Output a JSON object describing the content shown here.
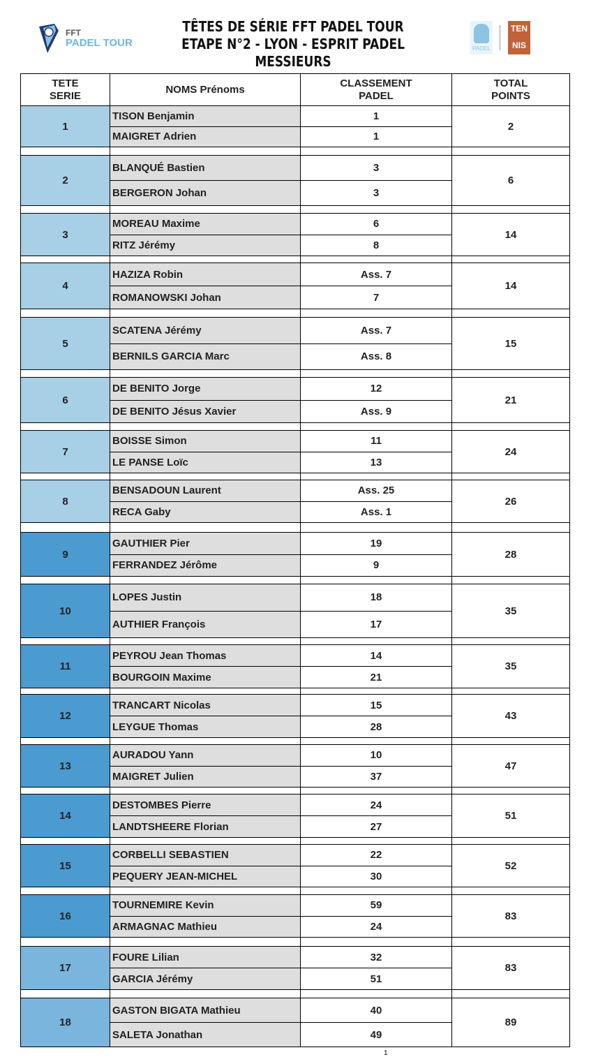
{
  "header": {
    "title_lines": [
      "TÊTES DE SÉRIE FFT  PADEL TOUR",
      "ETAPE N°2 -  LYON - ESPRIT PADEL",
      "MESSIEURS"
    ],
    "logo_left": {
      "line1": "FFT",
      "line2": "PADEL TOUR"
    },
    "logo_right": {
      "padel": "PADEL",
      "tennis_top": "TEN",
      "tennis_bottom": "NIS"
    }
  },
  "colors": {
    "seed_light": "#a7cfe5",
    "seed_dark": "#4b9bd1",
    "seed_mid": "#79b5dc",
    "name_bg": "#dedede",
    "tennis_brand": "#c0633a",
    "padel_brand": "#8cc4e2"
  },
  "columns": [
    "TETE SERIE",
    "NOMS Prénoms",
    "CLASSEMENT PADEL",
    "TOTAL POINTS"
  ],
  "seeds": [
    {
      "seed": "1",
      "players": [
        {
          "name": "TISON Benjamin",
          "rank": "1"
        },
        {
          "name": "MAIGRET Adrien",
          "rank": "1"
        }
      ],
      "total": "2"
    },
    {
      "seed": "2",
      "players": [
        {
          "name": "BLANQUÉ Bastien",
          "rank": "3"
        },
        {
          "name": "BERGERON Johan",
          "rank": "3"
        }
      ],
      "total": "6"
    },
    {
      "seed": "3",
      "players": [
        {
          "name": "MOREAU Maxime",
          "rank": "6"
        },
        {
          "name": "RITZ Jérémy",
          "rank": "8"
        }
      ],
      "total": "14"
    },
    {
      "seed": "4",
      "players": [
        {
          "name": "HAZIZA Robin",
          "rank": "Ass. 7"
        },
        {
          "name": "ROMANOWSKI Johan",
          "rank": "7"
        }
      ],
      "total": "14"
    },
    {
      "seed": "5",
      "players": [
        {
          "name": "SCATENA Jérémy",
          "rank": "Ass. 7"
        },
        {
          "name": "BERNILS GARCIA Marc",
          "rank": "Ass. 8"
        }
      ],
      "total": "15"
    },
    {
      "seed": "6",
      "players": [
        {
          "name": "DE BENITO Jorge",
          "rank": "12"
        },
        {
          "name": "DE BENITO Jésus Xavier",
          "rank": "Ass. 9"
        }
      ],
      "total": "21"
    },
    {
      "seed": "7",
      "players": [
        {
          "name": "BOISSE Simon",
          "rank": "11"
        },
        {
          "name": "LE PANSE Loïc",
          "rank": "13"
        }
      ],
      "total": "24"
    },
    {
      "seed": "8",
      "players": [
        {
          "name": "BENSADOUN Laurent",
          "rank": "Ass. 25"
        },
        {
          "name": "RECA Gaby",
          "rank": "Ass. 1"
        }
      ],
      "total": "26"
    },
    {
      "seed": "9",
      "players": [
        {
          "name": "GAUTHIER Pier",
          "rank": "19"
        },
        {
          "name": "FERRANDEZ Jérôme",
          "rank": "9"
        }
      ],
      "total": "28"
    },
    {
      "seed": "10",
      "players": [
        {
          "name": "LOPES Justin",
          "rank": "18"
        },
        {
          "name": "AUTHIER François",
          "rank": "17"
        }
      ],
      "total": "35"
    },
    {
      "seed": "11",
      "players": [
        {
          "name": "PEYROU Jean Thomas",
          "rank": "14"
        },
        {
          "name": "BOURGOIN Maxime",
          "rank": "21"
        }
      ],
      "total": "35"
    },
    {
      "seed": "12",
      "players": [
        {
          "name": "TRANCART Nicolas",
          "rank": "15"
        },
        {
          "name": "LEYGUE Thomas",
          "rank": "28"
        }
      ],
      "total": "43"
    },
    {
      "seed": "13",
      "players": [
        {
          "name": "AURADOU Yann",
          "rank": "10"
        },
        {
          "name": "MAIGRET Julien",
          "rank": "37"
        }
      ],
      "total": "47"
    },
    {
      "seed": "14",
      "players": [
        {
          "name": "DESTOMBES Pierre",
          "rank": "24"
        },
        {
          "name": "LANDTSHEERE Florian",
          "rank": "27"
        }
      ],
      "total": "51"
    },
    {
      "seed": "15",
      "players": [
        {
          "name": "CORBELLI SEBASTIEN",
          "rank": "22"
        },
        {
          "name": "PEQUERY JEAN-MICHEL",
          "rank": "30"
        }
      ],
      "total": "52"
    },
    {
      "seed": "16",
      "players": [
        {
          "name": "TOURNEMIRE Kevin",
          "rank": "59"
        },
        {
          "name": "ARMAGNAC Mathieu",
          "rank": "24"
        }
      ],
      "total": "83"
    },
    {
      "seed": "17",
      "players": [
        {
          "name": "FOURE Lilian",
          "rank": "32"
        },
        {
          "name": "GARCIA Jérémy",
          "rank": "51"
        }
      ],
      "total": "83"
    },
    {
      "seed": "18",
      "players": [
        {
          "name": "GASTON BIGATA Mathieu",
          "rank": "40"
        },
        {
          "name": "SALETA Jonathan",
          "rank": "49"
        }
      ],
      "total": "89"
    }
  ],
  "page_number": "1"
}
